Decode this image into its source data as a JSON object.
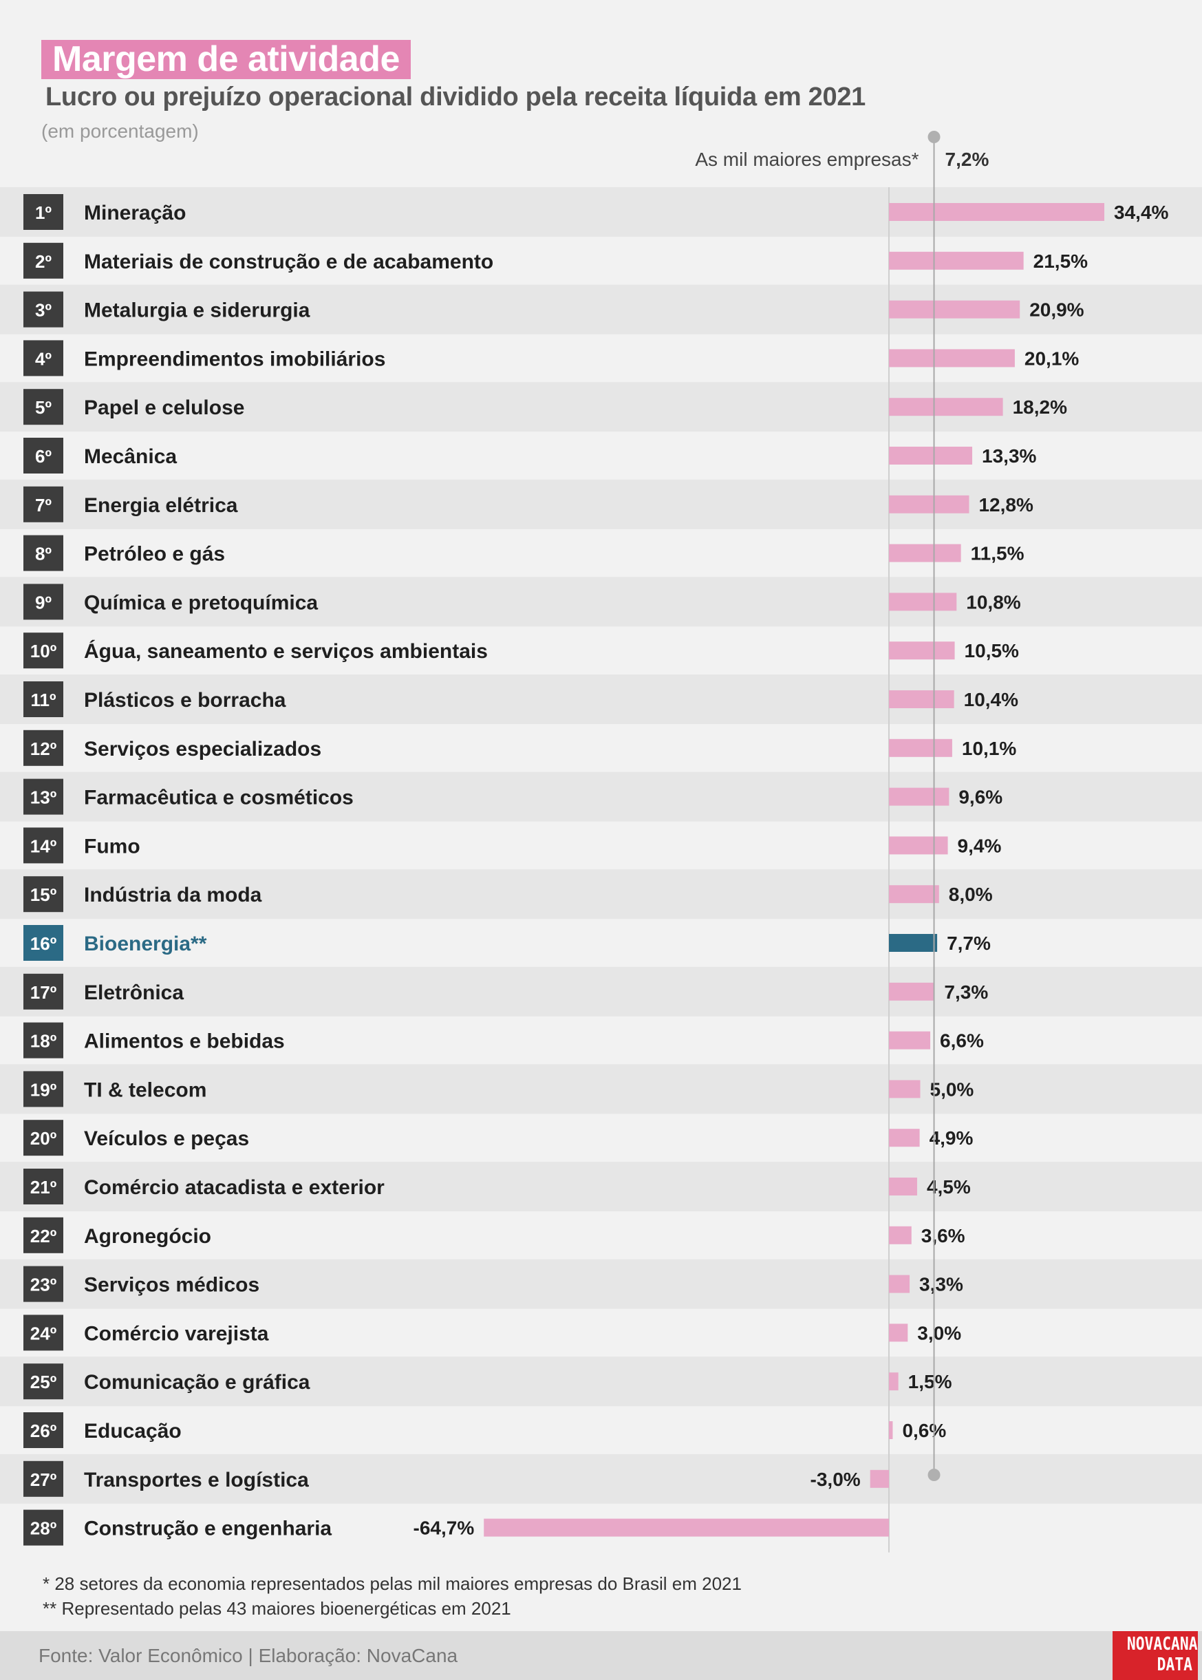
{
  "title": "Margem de atividade",
  "subtitle": "Lucro ou prejuízo operacional dividido pela receita líquida em 2021",
  "unit_note": "(em porcentagem)",
  "footnotes": [
    "* 28 setores da economia representados pelas mil maiores empresas do Brasil em 2021",
    "** Representado pelas 43 maiores bioenergéticas em 2021"
  ],
  "source": "Fonte: Valor Econômico | Elaboração: NovaCana",
  "logo": {
    "line1": "NOVACANA",
    "line2": "DATA"
  },
  "colors": {
    "bar": "#e8a8c8",
    "highlight": "#2b6a85",
    "rank_box": "#3d3d3d",
    "band": "#e6e6e6",
    "title_bg": "#e486b4",
    "logo_bg": "#d8232a"
  },
  "chart_data": {
    "type": "bar",
    "orientation": "horizontal",
    "reference_line": {
      "label": "As mil maiores empresas*",
      "value": 7.2,
      "value_label": "7,2%"
    },
    "categories": [
      "Mineração",
      "Materiais de construção e de acabamento",
      "Metalurgia e siderurgia",
      "Empreendimentos imobiliários",
      "Papel e celulose",
      "Mecânica",
      "Energia elétrica",
      "Petróleo e gás",
      "Química e pretoquímica",
      "Água, saneamento e serviços ambientais",
      "Plásticos e borracha",
      "Serviços especializados",
      "Farmacêutica e cosméticos",
      "Fumo",
      "Indústria da moda",
      "Bioenergia**",
      "Eletrônica",
      "Alimentos e bebidas",
      "TI & telecom",
      "Veículos e peças",
      "Comércio atacadista e exterior",
      "Agronegócio",
      "Serviços médicos",
      "Comércio varejista",
      "Comunicação e gráfica",
      "Educação",
      "Transportes e logística",
      "Construção e engenharia"
    ],
    "ranks": [
      "1º",
      "2º",
      "3º",
      "4º",
      "5º",
      "6º",
      "7º",
      "8º",
      "9º",
      "10º",
      "11º",
      "12º",
      "13º",
      "14º",
      "15º",
      "16º",
      "17º",
      "18º",
      "19º",
      "20º",
      "21º",
      "22º",
      "23º",
      "24º",
      "25º",
      "26º",
      "27º",
      "28º"
    ],
    "values": [
      34.4,
      21.5,
      20.9,
      20.1,
      18.2,
      13.3,
      12.8,
      11.5,
      10.8,
      10.5,
      10.4,
      10.1,
      9.6,
      9.4,
      8.0,
      7.7,
      7.3,
      6.6,
      5.0,
      4.9,
      4.5,
      3.6,
      3.3,
      3.0,
      1.5,
      0.6,
      -3.0,
      -64.7
    ],
    "value_labels": [
      "34,4%",
      "21,5%",
      "20,9%",
      "20,1%",
      "18,2%",
      "13,3%",
      "12,8%",
      "11,5%",
      "10,8%",
      "10,5%",
      "10,4%",
      "10,1%",
      "9,6%",
      "9,4%",
      "8,0%",
      "7,7%",
      "7,3%",
      "6,6%",
      "5,0%",
      "4,9%",
      "4,5%",
      "3,6%",
      "3,3%",
      "3,0%",
      "1,5%",
      "0,6%",
      "-3,0%",
      "-64,7%"
    ],
    "highlight_index": 15
  }
}
